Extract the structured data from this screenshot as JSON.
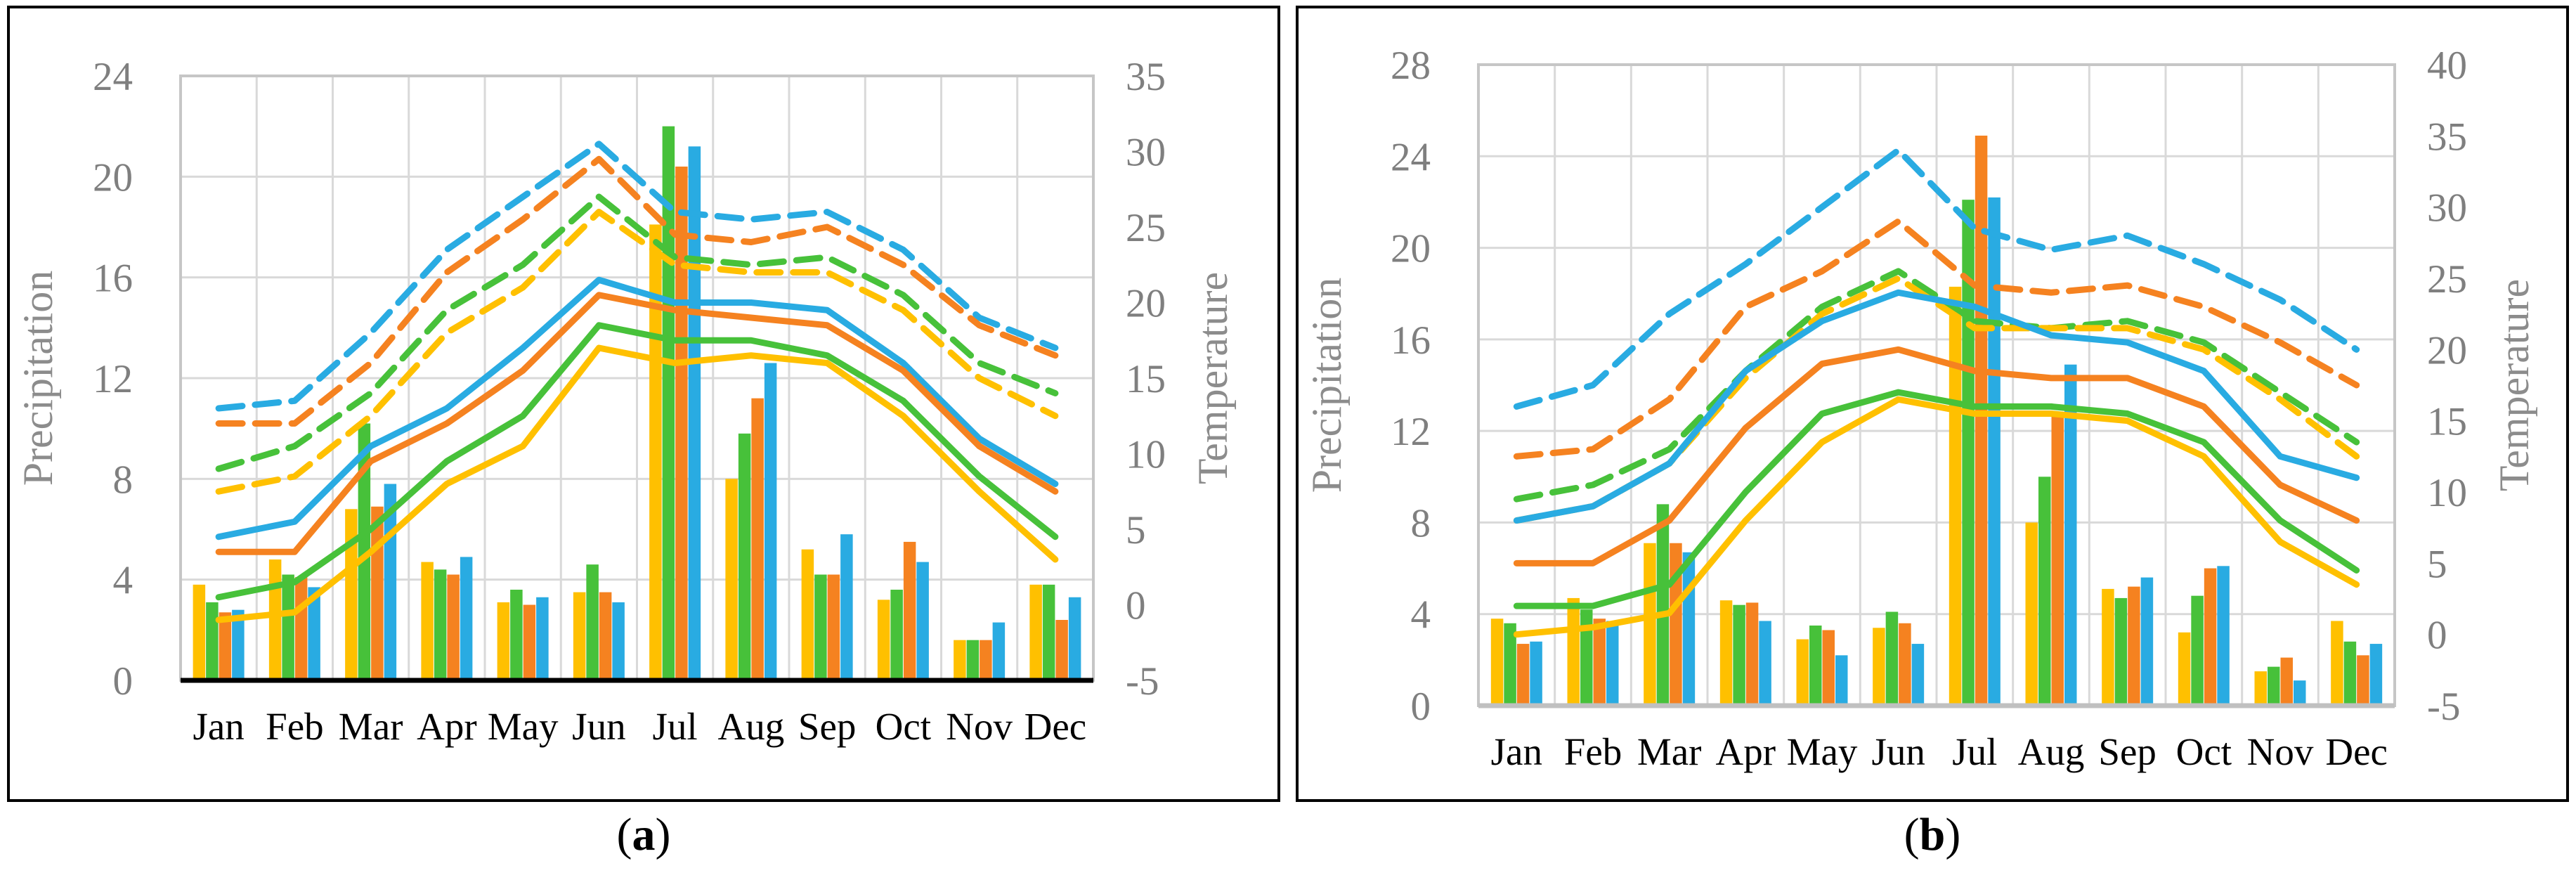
{
  "figure": {
    "caption_a": {
      "pre": "(",
      "letter": "a",
      "post": ")"
    },
    "caption_b": {
      "pre": "(",
      "letter": "b",
      "post": ")"
    }
  },
  "colors": {
    "yellow": "#FFC000",
    "green": "#47C13A",
    "orange": "#F58220",
    "blue": "#29ABE2",
    "gridline": "#D9D9D9",
    "plot_border": "#C6C6C6",
    "axis_text": "#7F7F7F",
    "axis_title": "#8C8C8C",
    "month_text": "#000000",
    "axis_line_a": "#000000",
    "axis_line_b": "#C0C0C0"
  },
  "chart_data": [
    {
      "id": "a",
      "type": "bar+line",
      "title": "",
      "categories": [
        "Jan",
        "Feb",
        "Mar",
        "Apr",
        "May",
        "Jun",
        "Jul",
        "Aug",
        "Sep",
        "Oct",
        "Nov",
        "Dec"
      ],
      "left_axis": {
        "label": "Precipitation",
        "min": 0,
        "max": 24,
        "step": 4,
        "ticks": [
          "24",
          "20",
          "16",
          "12",
          "8",
          "4",
          "0"
        ]
      },
      "right_axis": {
        "label": "Temperature",
        "min": -5,
        "max": 35,
        "step": 5,
        "ticks": [
          "35",
          "30",
          "25",
          "20",
          "15",
          "10",
          "5",
          "0",
          "-5"
        ]
      },
      "grid": true,
      "legend": "none",
      "bar_series": [
        {
          "name": "precipitation-bars-yellow",
          "color_key": "yellow",
          "values": [
            3.8,
            4.8,
            6.8,
            4.7,
            3.1,
            3.5,
            18.1,
            8.0,
            5.2,
            3.2,
            1.6,
            3.8
          ]
        },
        {
          "name": "precipitation-bars-green",
          "color_key": "green",
          "values": [
            3.1,
            4.2,
            10.2,
            4.4,
            3.6,
            4.6,
            22.0,
            9.8,
            4.2,
            3.6,
            1.6,
            3.8
          ]
        },
        {
          "name": "precipitation-bars-orange",
          "color_key": "orange",
          "values": [
            2.7,
            4.1,
            6.9,
            4.2,
            3.0,
            3.5,
            20.4,
            11.2,
            4.2,
            5.5,
            1.6,
            2.4
          ]
        },
        {
          "name": "precipitation-bars-blue",
          "color_key": "blue",
          "values": [
            2.8,
            3.7,
            7.8,
            4.9,
            3.3,
            3.1,
            21.2,
            12.6,
            5.8,
            4.7,
            2.3,
            3.3
          ]
        }
      ],
      "line_series": [
        {
          "name": "temperature-dashed-blue",
          "style": "dashed",
          "color_key": "blue",
          "values": [
            13,
            13.5,
            18,
            23.5,
            27,
            30.5,
            26,
            25.5,
            26,
            23.5,
            19,
            17
          ]
        },
        {
          "name": "temperature-dashed-orange",
          "style": "dashed",
          "color_key": "orange",
          "values": [
            12,
            12,
            16,
            22,
            25.5,
            29.5,
            24.5,
            24,
            25,
            22.5,
            18.5,
            16.5
          ]
        },
        {
          "name": "temperature-dashed-green",
          "style": "dashed",
          "color_key": "green",
          "values": [
            9,
            10.5,
            14,
            19.5,
            22.5,
            27,
            23,
            22.5,
            23,
            20.5,
            16,
            14
          ]
        },
        {
          "name": "temperature-dashed-yellow",
          "style": "dashed",
          "color_key": "yellow",
          "values": [
            7.5,
            8.5,
            12.5,
            18,
            21,
            26,
            22.5,
            22,
            22,
            19.5,
            15,
            12.5
          ]
        },
        {
          "name": "temperature-solid-blue",
          "style": "solid",
          "color_key": "blue",
          "values": [
            4.5,
            5.5,
            10.5,
            13,
            17,
            21.5,
            20,
            20,
            19.5,
            16,
            11,
            8
          ]
        },
        {
          "name": "temperature-solid-orange",
          "style": "solid",
          "color_key": "orange",
          "values": [
            3.5,
            3.5,
            9.5,
            12,
            15.5,
            20.5,
            19.5,
            19,
            18.5,
            15.5,
            10.5,
            7.5
          ]
        },
        {
          "name": "temperature-solid-green",
          "style": "solid",
          "color_key": "green",
          "values": [
            0.5,
            1.5,
            5,
            9.5,
            12.5,
            18.5,
            17.5,
            17.5,
            16.5,
            13.5,
            8.5,
            4.5
          ]
        },
        {
          "name": "temperature-solid-yellow",
          "style": "solid",
          "color_key": "yellow",
          "values": [
            -1,
            -0.5,
            3.5,
            8,
            10.5,
            17,
            16,
            16.5,
            16,
            12.5,
            7.5,
            3
          ]
        }
      ]
    },
    {
      "id": "b",
      "type": "bar+line",
      "title": "",
      "categories": [
        "Jan",
        "Feb",
        "Mar",
        "Apr",
        "May",
        "Jun",
        "Jul",
        "Aug",
        "Sep",
        "Oct",
        "Nov",
        "Dec"
      ],
      "left_axis": {
        "label": "Precipitation",
        "min": 0,
        "max": 28,
        "step": 4,
        "ticks": [
          "28",
          "24",
          "20",
          "16",
          "12",
          "8",
          "4",
          "0"
        ]
      },
      "right_axis": {
        "label": "Temperature",
        "min": -5,
        "max": 40,
        "step": 5,
        "ticks": [
          "40",
          "35",
          "30",
          "25",
          "20",
          "15",
          "10",
          "5",
          "0",
          "-5"
        ]
      },
      "grid": true,
      "legend": "none",
      "bar_series": [
        {
          "name": "precipitation-bars-yellow",
          "color_key": "yellow",
          "values": [
            3.8,
            4.7,
            7.1,
            4.6,
            2.9,
            3.4,
            18.3,
            8.0,
            5.1,
            3.2,
            1.5,
            3.7
          ]
        },
        {
          "name": "precipitation-bars-green",
          "color_key": "green",
          "values": [
            3.6,
            4.2,
            8.8,
            4.4,
            3.5,
            4.1,
            22.1,
            10.0,
            4.7,
            4.8,
            1.7,
            2.8
          ]
        },
        {
          "name": "precipitation-bars-orange",
          "color_key": "orange",
          "values": [
            2.7,
            3.8,
            7.1,
            4.5,
            3.3,
            3.6,
            24.9,
            12.7,
            5.2,
            6.0,
            2.1,
            2.2
          ]
        },
        {
          "name": "precipitation-bars-blue",
          "color_key": "blue",
          "values": [
            2.8,
            3.7,
            6.7,
            3.7,
            2.2,
            2.7,
            22.2,
            14.9,
            5.6,
            6.1,
            1.1,
            2.7
          ]
        }
      ],
      "line_series": [
        {
          "name": "temperature-dashed-blue",
          "style": "dashed",
          "color_key": "blue",
          "values": [
            16,
            17.5,
            22.5,
            26,
            30,
            34,
            28.5,
            27,
            28,
            26,
            23.5,
            20
          ]
        },
        {
          "name": "temperature-dashed-orange",
          "style": "dashed",
          "color_key": "orange",
          "values": [
            12.5,
            13,
            16.5,
            23,
            25.5,
            29,
            24.5,
            24,
            24.5,
            23,
            20.5,
            17.5
          ]
        },
        {
          "name": "temperature-dashed-green",
          "style": "dashed",
          "color_key": "green",
          "values": [
            9.5,
            10.5,
            13,
            18.5,
            23,
            25.5,
            22,
            21.5,
            22,
            20.5,
            17,
            13.5
          ]
        },
        {
          "name": "temperature-dashed-yellow",
          "style": "dashed",
          "color_key": "yellow",
          "values": [
            8,
            9,
            12,
            18,
            22.5,
            25,
            21.5,
            21.5,
            21.5,
            20,
            16.5,
            12.5
          ]
        },
        {
          "name": "temperature-solid-blue",
          "style": "solid",
          "color_key": "blue",
          "values": [
            8,
            9,
            12,
            18.5,
            22,
            24,
            23,
            21,
            20.5,
            18.5,
            12.5,
            11
          ]
        },
        {
          "name": "temperature-solid-orange",
          "style": "solid",
          "color_key": "orange",
          "values": [
            5,
            5,
            8,
            14.5,
            19,
            20,
            18.5,
            18,
            18,
            16,
            10.5,
            8
          ]
        },
        {
          "name": "temperature-solid-green",
          "style": "solid",
          "color_key": "green",
          "values": [
            2,
            2,
            3.5,
            10,
            15.5,
            17,
            16,
            16,
            15.5,
            13.5,
            8,
            4.5
          ]
        },
        {
          "name": "temperature-solid-yellow",
          "style": "solid",
          "color_key": "yellow",
          "values": [
            0,
            0.5,
            1.5,
            8,
            13.5,
            16.5,
            15.5,
            15.5,
            15,
            12.5,
            6.5,
            3.5
          ]
        }
      ]
    }
  ]
}
